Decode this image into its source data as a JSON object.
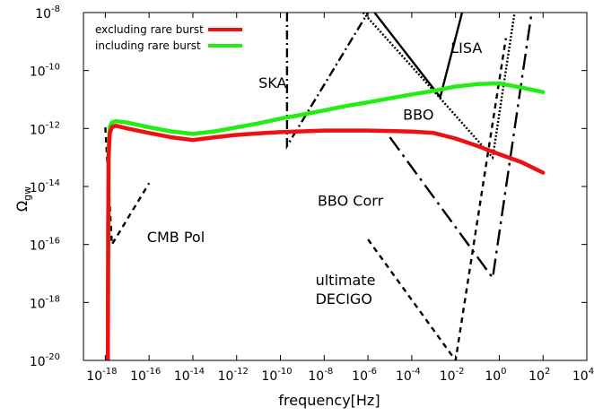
{
  "chart_data": {
    "type": "line",
    "xlabel": "frequency[Hz]",
    "ylabel": "Ω",
    "ylabel_sub": "gw",
    "xscale": "log",
    "yscale": "log",
    "xlim": [
      1e-19,
      10000.0
    ],
    "ylim": [
      1e-20,
      1e-08
    ],
    "x_ticks": [
      {
        "base": "10",
        "exp": "-18",
        "value": 1e-18
      },
      {
        "base": "10",
        "exp": "-16",
        "value": 1e-16
      },
      {
        "base": "10",
        "exp": "-14",
        "value": 1e-14
      },
      {
        "base": "10",
        "exp": "-12",
        "value": 1e-12
      },
      {
        "base": "10",
        "exp": "-10",
        "value": 1e-10
      },
      {
        "base": "10",
        "exp": "-8",
        "value": 1e-08
      },
      {
        "base": "10",
        "exp": "-6",
        "value": 1e-06
      },
      {
        "base": "10",
        "exp": "-4",
        "value": 0.0001
      },
      {
        "base": "10",
        "exp": "-2",
        "value": 0.01
      },
      {
        "base": "10",
        "exp": "0",
        "value": 1
      },
      {
        "base": "10",
        "exp": "2",
        "value": 100.0
      },
      {
        "base": "10",
        "exp": "4",
        "value": 10000.0
      }
    ],
    "y_ticks": [
      {
        "base": "10",
        "exp": "-20",
        "value": 1e-20
      },
      {
        "base": "10",
        "exp": "-18",
        "value": 1e-18
      },
      {
        "base": "10",
        "exp": "-16",
        "value": 1e-16
      },
      {
        "base": "10",
        "exp": "-14",
        "value": 1e-14
      },
      {
        "base": "10",
        "exp": "-12",
        "value": 1e-12
      },
      {
        "base": "10",
        "exp": "-10",
        "value": 1e-10
      },
      {
        "base": "10",
        "exp": "-8",
        "value": 1e-08
      }
    ],
    "legend": {
      "position": "top-left",
      "entries": [
        {
          "label": "excluding rare burst",
          "color": "#ee1111"
        },
        {
          "label": "including rare burst",
          "color": "#22ee11"
        }
      ]
    },
    "series": [
      {
        "name": "excluding rare burst",
        "color": "#ee1111",
        "points": [
          [
            1.3e-18,
            1e-20
          ],
          [
            1.35e-18,
            3e-16
          ],
          [
            1.4e-18,
            1e-13
          ],
          [
            1.6e-18,
            7e-13
          ],
          [
            2e-18,
            1.1e-12
          ],
          [
            3e-18,
            1.25e-12
          ],
          [
            1e-17,
            1e-12
          ],
          [
            1e-16,
            7e-13
          ],
          [
            1e-15,
            5e-13
          ],
          [
            1e-14,
            4e-13
          ],
          [
            1e-13,
            5e-13
          ],
          [
            1e-12,
            6e-13
          ],
          [
            1e-11,
            6.8e-13
          ],
          [
            1e-10,
            7.5e-13
          ],
          [
            1e-09,
            8e-13
          ],
          [
            1e-08,
            8.5e-13
          ],
          [
            1e-07,
            8.5e-13
          ],
          [
            1e-06,
            8.5e-13
          ],
          [
            1e-05,
            8.2e-13
          ],
          [
            0.0001,
            7.8e-13
          ],
          [
            0.001,
            7e-13
          ],
          [
            0.01,
            4.5e-13
          ],
          [
            0.1,
            2.5e-13
          ],
          [
            1,
            1.3e-13
          ],
          [
            10,
            7e-14
          ],
          [
            100,
            3e-14
          ]
        ]
      },
      {
        "name": "including rare burst",
        "color": "#22ee11",
        "points": [
          [
            1.3e-18,
            1e-20
          ],
          [
            1.35e-18,
            3e-16
          ],
          [
            1.4e-18,
            2e-13
          ],
          [
            1.6e-18,
            1.1e-12
          ],
          [
            2e-18,
            1.6e-12
          ],
          [
            3e-18,
            1.8e-12
          ],
          [
            1e-17,
            1.6e-12
          ],
          [
            1e-16,
            1.1e-12
          ],
          [
            1e-15,
            8e-13
          ],
          [
            1e-14,
            6.5e-13
          ],
          [
            1e-13,
            8e-13
          ],
          [
            1e-12,
            1.1e-12
          ],
          [
            1e-11,
            1.5e-12
          ],
          [
            1e-10,
            2.2e-12
          ],
          [
            1e-09,
            3e-12
          ],
          [
            1e-08,
            4.2e-12
          ],
          [
            1e-07,
            6e-12
          ],
          [
            1e-06,
            8e-12
          ],
          [
            1e-05,
            1.1e-11
          ],
          [
            0.0001,
            1.5e-11
          ],
          [
            0.001,
            2e-11
          ],
          [
            0.01,
            2.8e-11
          ],
          [
            0.1,
            3.4e-11
          ],
          [
            1,
            3.6e-11
          ],
          [
            10,
            2.6e-11
          ],
          [
            100,
            1.8e-11
          ]
        ]
      }
    ],
    "sensitivity_curves": [
      {
        "name": "CMB Pol",
        "style": "dash",
        "points": [
          [
            1e-18,
            1.1e-12
          ],
          [
            2e-18,
            1e-16
          ],
          [
            1e-16,
            1.3e-14
          ]
        ]
      },
      {
        "name": "SKA",
        "style": "dashdot",
        "points": [
          [
            2e-10,
            1e-08
          ],
          [
            2e-10,
            2.5e-13
          ],
          [
            1e-06,
            1e-08
          ]
        ]
      },
      {
        "name": "LISA",
        "style": "solid",
        "points": [
          [
            2e-06,
            1e-08
          ],
          [
            0.002,
            1.2e-11
          ],
          [
            0.02,
            1e-08
          ]
        ]
      },
      {
        "name": "BBO",
        "style": "dot",
        "points": [
          [
            6e-07,
            1e-08
          ],
          [
            0.001,
            2e-11
          ],
          [
            0.5,
            1e-13
          ],
          [
            5,
            1e-08
          ]
        ]
      },
      {
        "name": "BBO Corr",
        "style": "longdashdot",
        "points": [
          [
            1e-05,
            5e-13
          ],
          [
            0.5,
            7e-18
          ],
          [
            30,
            1e-08
          ]
        ]
      },
      {
        "name": "ultimate DECIGO",
        "style": "dash",
        "points": [
          [
            1e-06,
            1.5e-16
          ],
          [
            0.01,
            1e-20
          ],
          [
            2,
            1.3e-09
          ]
        ]
      }
    ],
    "annotations": [
      {
        "text": "CMB Pol",
        "x": 8e-17,
        "y": 1.2e-16
      },
      {
        "text": "SKA",
        "x": 1e-11,
        "y": 2.5e-11
      },
      {
        "text": "LISA",
        "x": 0.006,
        "y": 4e-10
      },
      {
        "text": "BBO",
        "x": 4e-05,
        "y": 2e-12
      },
      {
        "text": "BBO Corr",
        "x": 5e-09,
        "y": 2.2e-15
      },
      {
        "text": "ultimate",
        "x": 4e-09,
        "y": 4e-18
      },
      {
        "text": "DECIGO",
        "x": 4e-09,
        "y": 9e-19
      }
    ]
  }
}
